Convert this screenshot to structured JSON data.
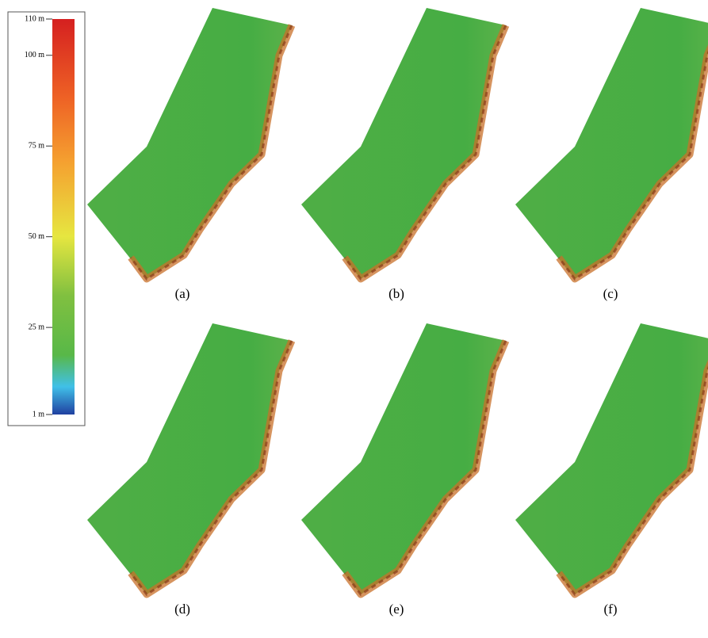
{
  "colorbar": {
    "min": 1,
    "max": 110,
    "ticks": [
      {
        "value": 110,
        "label": "110 m"
      },
      {
        "value": 100,
        "label": "100 m"
      },
      {
        "value": 75,
        "label": "75 m"
      },
      {
        "value": 50,
        "label": "50 m"
      },
      {
        "value": 25,
        "label": "25 m"
      },
      {
        "value": 1,
        "label": "1 m"
      }
    ]
  },
  "panels": [
    {
      "label": "(a)"
    },
    {
      "label": "(b)"
    },
    {
      "label": "(c)"
    },
    {
      "label": "(d)"
    },
    {
      "label": "(e)"
    },
    {
      "label": "(f)"
    }
  ]
}
